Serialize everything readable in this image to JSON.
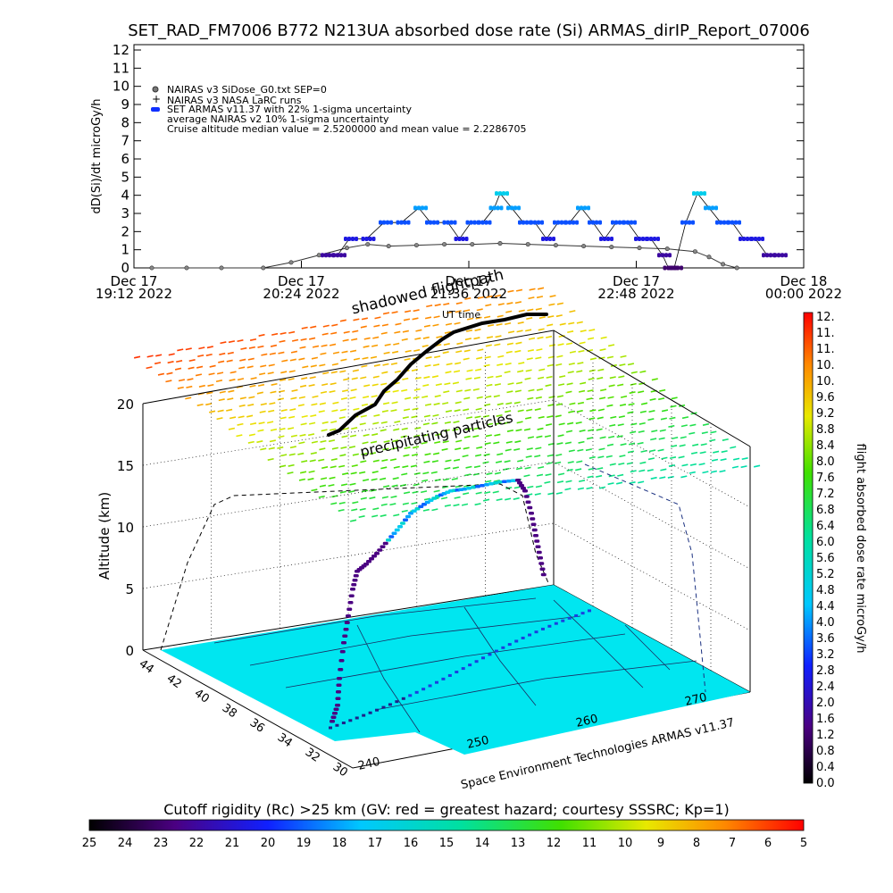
{
  "figure": {
    "title": "SET_RAD_FM7006   B772 N213UA absorbed dose rate (Si) ARMAS_dirIP_Report_07006"
  },
  "chart_data": [
    {
      "type": "scatter",
      "name": "dose_rate_timeline",
      "ylabel": "dD(Si)/dt microGy/h",
      "xlabel": "",
      "ylim": [
        0,
        12
      ],
      "y_ticks": [
        "0",
        "1",
        "2",
        "3",
        "4",
        "5",
        "6",
        "7",
        "8",
        "9",
        "10",
        "11",
        "12"
      ],
      "x_ticks": [
        {
          "line1": "Dec 17",
          "line2": "19:12 2022"
        },
        {
          "line1": "Dec 17",
          "line2": "20:24 2022"
        },
        {
          "line1": "Dec 17",
          "line2": "21:36 2022"
        },
        {
          "line1": "Dec 17",
          "line2": "22:48 2022"
        },
        {
          "line1": "Dec 18",
          "line2": "00:00 2022"
        }
      ],
      "legend": [
        "NAIRAS v3 SiDose_G0.txt SEP=0",
        "NAIRAS v3 NASA LaRC runs",
        "SET ARMAS v11.37 with 22% 1-sigma uncertainty",
        "average NAIRAS v2 10% 1-sigma uncertainty",
        "Cruise altitude median value = 2.5200000 and mean value = 2.2286705"
      ],
      "legend_position": "top-left",
      "series": [
        {
          "name": "NAIRAS v3 SiDose_G0.txt SEP=0",
          "color": "#555555",
          "points": [
            [
              0,
              0
            ],
            [
              0.05,
              0
            ],
            [
              0.1,
              0
            ],
            [
              0.16,
              0
            ],
            [
              0.2,
              0.3
            ],
            [
              0.24,
              0.7
            ],
            [
              0.28,
              1.1
            ],
            [
              0.31,
              1.3
            ],
            [
              0.34,
              1.2
            ],
            [
              0.38,
              1.25
            ],
            [
              0.42,
              1.3
            ],
            [
              0.46,
              1.3
            ],
            [
              0.5,
              1.35
            ],
            [
              0.54,
              1.3
            ],
            [
              0.58,
              1.25
            ],
            [
              0.62,
              1.2
            ],
            [
              0.66,
              1.15
            ],
            [
              0.7,
              1.1
            ],
            [
              0.74,
              1.05
            ],
            [
              0.78,
              0.9
            ],
            [
              0.8,
              0.6
            ],
            [
              0.82,
              0.2
            ],
            [
              0.84,
              0
            ]
          ]
        },
        {
          "name": "SET ARMAS v11.37",
          "points": [
            [
              0.2,
              0.7
            ],
            [
              0.22,
              0.7
            ],
            [
              0.24,
              1.6
            ],
            [
              0.27,
              1.6
            ],
            [
              0.3,
              2.5
            ],
            [
              0.33,
              2.5
            ],
            [
              0.36,
              3.3
            ],
            [
              0.38,
              2.5
            ],
            [
              0.41,
              2.5
            ],
            [
              0.43,
              1.6
            ],
            [
              0.45,
              2.5
            ],
            [
              0.47,
              2.5
            ],
            [
              0.49,
              3.3
            ],
            [
              0.5,
              4.1
            ],
            [
              0.52,
              3.3
            ],
            [
              0.54,
              2.5
            ],
            [
              0.56,
              2.5
            ],
            [
              0.58,
              1.6
            ],
            [
              0.6,
              2.5
            ],
            [
              0.62,
              2.5
            ],
            [
              0.64,
              3.3
            ],
            [
              0.66,
              2.5
            ],
            [
              0.68,
              1.6
            ],
            [
              0.7,
              2.5
            ],
            [
              0.72,
              2.5
            ],
            [
              0.74,
              1.6
            ],
            [
              0.76,
              1.6
            ],
            [
              0.78,
              0.7
            ],
            [
              0.79,
              0
            ],
            [
              0.8,
              0
            ],
            [
              0.82,
              2.5
            ],
            [
              0.84,
              4.1
            ],
            [
              0.86,
              3.3
            ],
            [
              0.88,
              2.5
            ],
            [
              0.9,
              2.5
            ],
            [
              0.92,
              1.6
            ],
            [
              0.94,
              1.6
            ],
            [
              0.96,
              0.7
            ],
            [
              0.98,
              0.7
            ]
          ]
        }
      ]
    },
    {
      "type": "scatter",
      "name": "flight_path_3d",
      "title_overlay": "shadowed flightpath",
      "time_label": "UT time",
      "annotation": "precipitating particles",
      "ylabel": "Altitude (km)",
      "y_ticks": [
        "0",
        "5",
        "10",
        "15",
        "20"
      ],
      "lat_ticks": [
        "44",
        "42",
        "40",
        "38",
        "36",
        "34",
        "32",
        "30"
      ],
      "lon_ticks": [
        "240",
        "250",
        "260",
        "270"
      ],
      "credit": "Space Environment Technologies ARMAS v11.37",
      "altitude_profile_km": [
        0,
        2,
        4,
        6,
        7,
        8,
        9,
        10,
        10.5,
        11,
        11.5,
        12,
        12,
        12,
        12,
        11.8,
        11,
        9,
        6,
        3,
        0.5
      ]
    }
  ],
  "colorbar_right": {
    "label": "flight absorbed dose rate microGy/h",
    "ticks": [
      "12.",
      "11.",
      "11.",
      "10.",
      "10.",
      "9.6",
      "9.2",
      "8.8",
      "8.4",
      "8.0",
      "7.6",
      "7.2",
      "6.8",
      "6.4",
      "6.0",
      "5.6",
      "5.2",
      "4.8",
      "4.4",
      "4.0",
      "3.6",
      "3.2",
      "2.8",
      "2.4",
      "2.0",
      "1.6",
      "1.2",
      "0.8",
      "0.4",
      "0.0"
    ]
  },
  "colorbar_bottom": {
    "label": "Cutoff rigidity (Rc) >25 km (GV: red = greatest hazard; courtesy SSSRC; Kp=1)",
    "ticks": [
      "25",
      "24",
      "23",
      "22",
      "21",
      "20",
      "19",
      "18",
      "17",
      "16",
      "15",
      "14",
      "13",
      "12",
      "11",
      "10",
      "9",
      "8",
      "7",
      "6",
      "5"
    ]
  },
  "colors": {
    "ground": "#00e6f0",
    "colormap_low": "#000000",
    "colormap_mid": "#00ccff",
    "colormap_high": "#ff0000"
  }
}
